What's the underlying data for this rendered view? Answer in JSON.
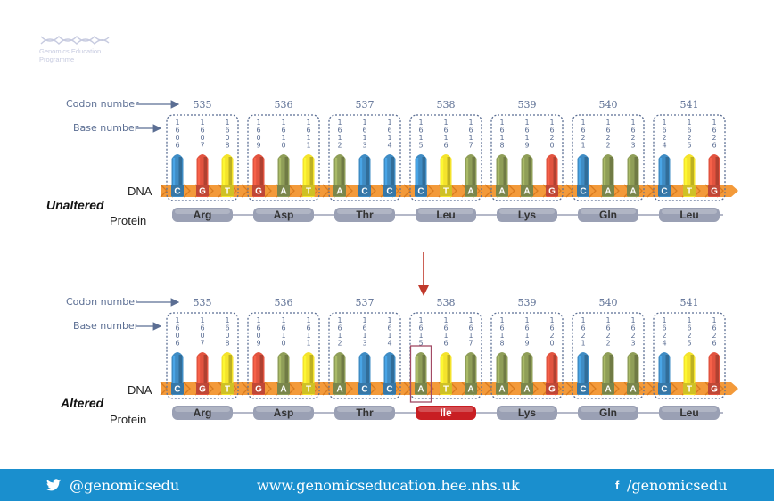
{
  "branding": {
    "logo_icon": "dna-helix-icon",
    "org_name_line1": "Genomics Education",
    "org_name_line2": "Programme"
  },
  "labels": {
    "codon_number": "Codon number",
    "base_number": "Base number",
    "dna": "DNA",
    "protein": "Protein",
    "unaltered": "Unaltered",
    "altered": "Altered"
  },
  "colors": {
    "A": "#8f9e58",
    "C": "#3f8cc4",
    "G": "#e2533f",
    "T": "#f4e32c",
    "backbone": "#f39a3a",
    "protein_pill": "#9aa0b4",
    "altered_protein": "#c81e23",
    "arrow": "#c0392b",
    "footer_bg": "#1a8fce"
  },
  "panels": [
    {
      "state_key": "unaltered",
      "codons": [
        {
          "number": "535",
          "bases": [
            "C",
            "G",
            "T"
          ],
          "base_numbers": [
            "1606",
            "1607",
            "1608"
          ],
          "amino_acid": "Arg"
        },
        {
          "number": "536",
          "bases": [
            "G",
            "A",
            "T"
          ],
          "base_numbers": [
            "1609",
            "1610",
            "1611"
          ],
          "amino_acid": "Asp"
        },
        {
          "number": "537",
          "bases": [
            "A",
            "C",
            "C"
          ],
          "base_numbers": [
            "1612",
            "1613",
            "1614"
          ],
          "amino_acid": "Thr"
        },
        {
          "number": "538",
          "bases": [
            "C",
            "T",
            "A"
          ],
          "base_numbers": [
            "1615",
            "1616",
            "1617"
          ],
          "amino_acid": "Leu"
        },
        {
          "number": "539",
          "bases": [
            "A",
            "A",
            "G"
          ],
          "base_numbers": [
            "1618",
            "1619",
            "1620"
          ],
          "amino_acid": "Lys"
        },
        {
          "number": "540",
          "bases": [
            "C",
            "A",
            "A"
          ],
          "base_numbers": [
            "1621",
            "1622",
            "1623"
          ],
          "amino_acid": "Gln"
        },
        {
          "number": "541",
          "bases": [
            "C",
            "T",
            "G"
          ],
          "base_numbers": [
            "1624",
            "1625",
            "1626"
          ],
          "amino_acid": "Leu"
        }
      ]
    },
    {
      "state_key": "altered",
      "mutated_codon": 3,
      "mutated_base": 0,
      "codons": [
        {
          "number": "535",
          "bases": [
            "C",
            "G",
            "T"
          ],
          "base_numbers": [
            "1606",
            "1607",
            "1608"
          ],
          "amino_acid": "Arg"
        },
        {
          "number": "536",
          "bases": [
            "G",
            "A",
            "T"
          ],
          "base_numbers": [
            "1609",
            "1610",
            "1611"
          ],
          "amino_acid": "Asp"
        },
        {
          "number": "537",
          "bases": [
            "A",
            "C",
            "C"
          ],
          "base_numbers": [
            "1612",
            "1613",
            "1614"
          ],
          "amino_acid": "Thr"
        },
        {
          "number": "538",
          "bases": [
            "A",
            "T",
            "A"
          ],
          "base_numbers": [
            "1615",
            "1616",
            "1617"
          ],
          "amino_acid": "Ile"
        },
        {
          "number": "539",
          "bases": [
            "A",
            "A",
            "G"
          ],
          "base_numbers": [
            "1618",
            "1619",
            "1620"
          ],
          "amino_acid": "Lys"
        },
        {
          "number": "540",
          "bases": [
            "C",
            "A",
            "A"
          ],
          "base_numbers": [
            "1621",
            "1622",
            "1623"
          ],
          "amino_acid": "Gln"
        },
        {
          "number": "541",
          "bases": [
            "C",
            "T",
            "G"
          ],
          "base_numbers": [
            "1624",
            "1625",
            "1626"
          ],
          "amino_acid": "Leu"
        }
      ]
    }
  ],
  "footer": {
    "twitter_icon": "twitter-bird-icon",
    "twitter": "@genomicsedu",
    "website": "www.genomicseducation.hee.nhs.uk",
    "facebook_icon": "facebook-icon",
    "facebook_glyph": "f",
    "facebook": "/genomicsedu"
  }
}
